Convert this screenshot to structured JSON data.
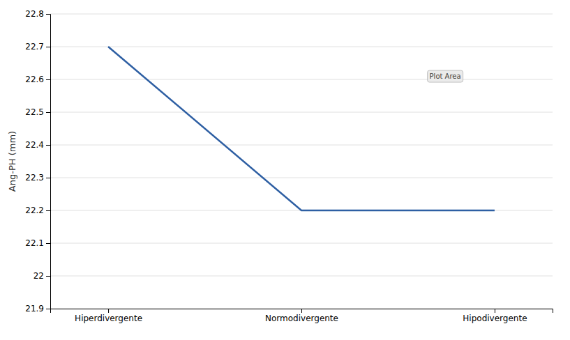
{
  "chart_data": {
    "type": "line",
    "categories": [
      "Hiperdivergente",
      "Normodivergente",
      "Hipodivergente"
    ],
    "values": [
      22.7,
      22.2,
      22.2
    ],
    "color": "#2E5FA3",
    "ylabel": "Ang-PH (mm)",
    "ylim": [
      21.9,
      22.8
    ],
    "yticks": [
      21.9,
      22,
      22.1,
      22.2,
      22.3,
      22.4,
      22.5,
      22.6,
      22.7,
      22.8
    ],
    "grid": true,
    "annotation": "Plot Area"
  }
}
